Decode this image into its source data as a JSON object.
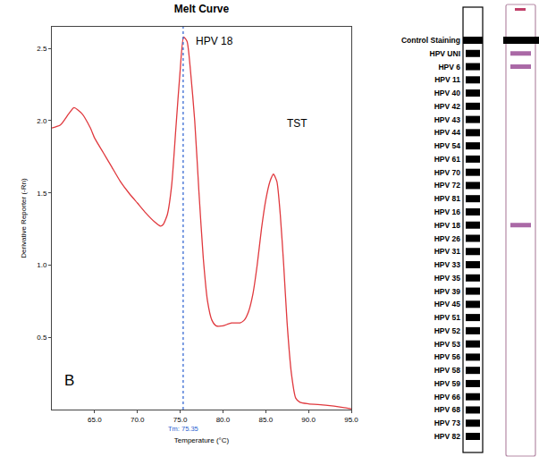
{
  "chart_data": {
    "type": "line",
    "title": "Melt Curve",
    "x_label": "Temperature (°C)",
    "y_label": "Derivative Reporter (-Rn)",
    "color": "#e0393e",
    "x": [
      60,
      61,
      62,
      62.6,
      63.5,
      64.5,
      65,
      66,
      67,
      68,
      69,
      70,
      71,
      72,
      72.7,
      73,
      73.5,
      74,
      74.5,
      75,
      75.4,
      75.8,
      76.2,
      76.7,
      77.2,
      77.7,
      78.2,
      78.7,
      79.2,
      80,
      81,
      82,
      82.5,
      83,
      83.5,
      84,
      84.5,
      85,
      85.5,
      85.9,
      86.3,
      86.7,
      87.1,
      87.5,
      88,
      88.5,
      89,
      90,
      92,
      94,
      95
    ],
    "values": [
      1.95,
      1.97,
      2.05,
      2.09,
      2.05,
      1.95,
      1.88,
      1.78,
      1.68,
      1.58,
      1.5,
      1.43,
      1.36,
      1.3,
      1.27,
      1.28,
      1.35,
      1.55,
      1.95,
      2.35,
      2.58,
      2.55,
      2.35,
      2.0,
      1.5,
      1.05,
      0.75,
      0.62,
      0.58,
      0.58,
      0.6,
      0.6,
      0.62,
      0.68,
      0.8,
      1.0,
      1.25,
      1.45,
      1.58,
      1.63,
      1.58,
      1.35,
      1.0,
      0.6,
      0.25,
      0.08,
      0.05,
      0.04,
      0.03,
      0.015,
      0.005
    ],
    "xlim": [
      60,
      95
    ],
    "xticks": [
      {
        "value": 65,
        "label": "65.0"
      },
      {
        "value": 70,
        "label": "70.0"
      },
      {
        "value": 75,
        "label": "75.0"
      },
      {
        "value": 80,
        "label": "80.0"
      },
      {
        "value": 85,
        "label": "85.0"
      },
      {
        "value": 90,
        "label": "90.0"
      },
      {
        "value": 95,
        "label": "95.0"
      }
    ],
    "ylim": [
      0,
      2.65
    ],
    "yticks": [
      0.5,
      {
        "value": 1,
        "label": "1.0"
      },
      1.5,
      {
        "value": 2,
        "label": "2.0"
      },
      2.5
    ],
    "grid": false,
    "marker_line": {
      "value": 75.35,
      "label": "Tm: 75.35"
    },
    "annotations": [
      {
        "text": "HPV 18",
        "x": 76.6,
        "y": 2.55
      },
      {
        "text": "TST",
        "x": 87.3,
        "y": 1.98
      }
    ],
    "panel_label": "B"
  },
  "strip": {
    "labels": [
      "Control Staining",
      "HPV UNI",
      "HPV 6",
      "HPV 11",
      "HPV 40",
      "HPV 42",
      "HPV 43",
      "HPV 44",
      "HPV 54",
      "HPV 61",
      "HPV 70",
      "HPV 72",
      "HPV 81",
      "HPV 16",
      "HPV 18",
      "HPV 26",
      "HPV 31",
      "HPV 33",
      "HPV 35",
      "HPV 39",
      "HPV 45",
      "HPV 51",
      "HPV 52",
      "HPV 53",
      "HPV 56",
      "HPV 58",
      "HPV 59",
      "HPV 66",
      "HPV 68",
      "HPV 73",
      "HPV 82"
    ],
    "bands": [
      "Control Staining",
      "HPV UNI",
      "HPV 6",
      "HPV 18"
    ]
  }
}
